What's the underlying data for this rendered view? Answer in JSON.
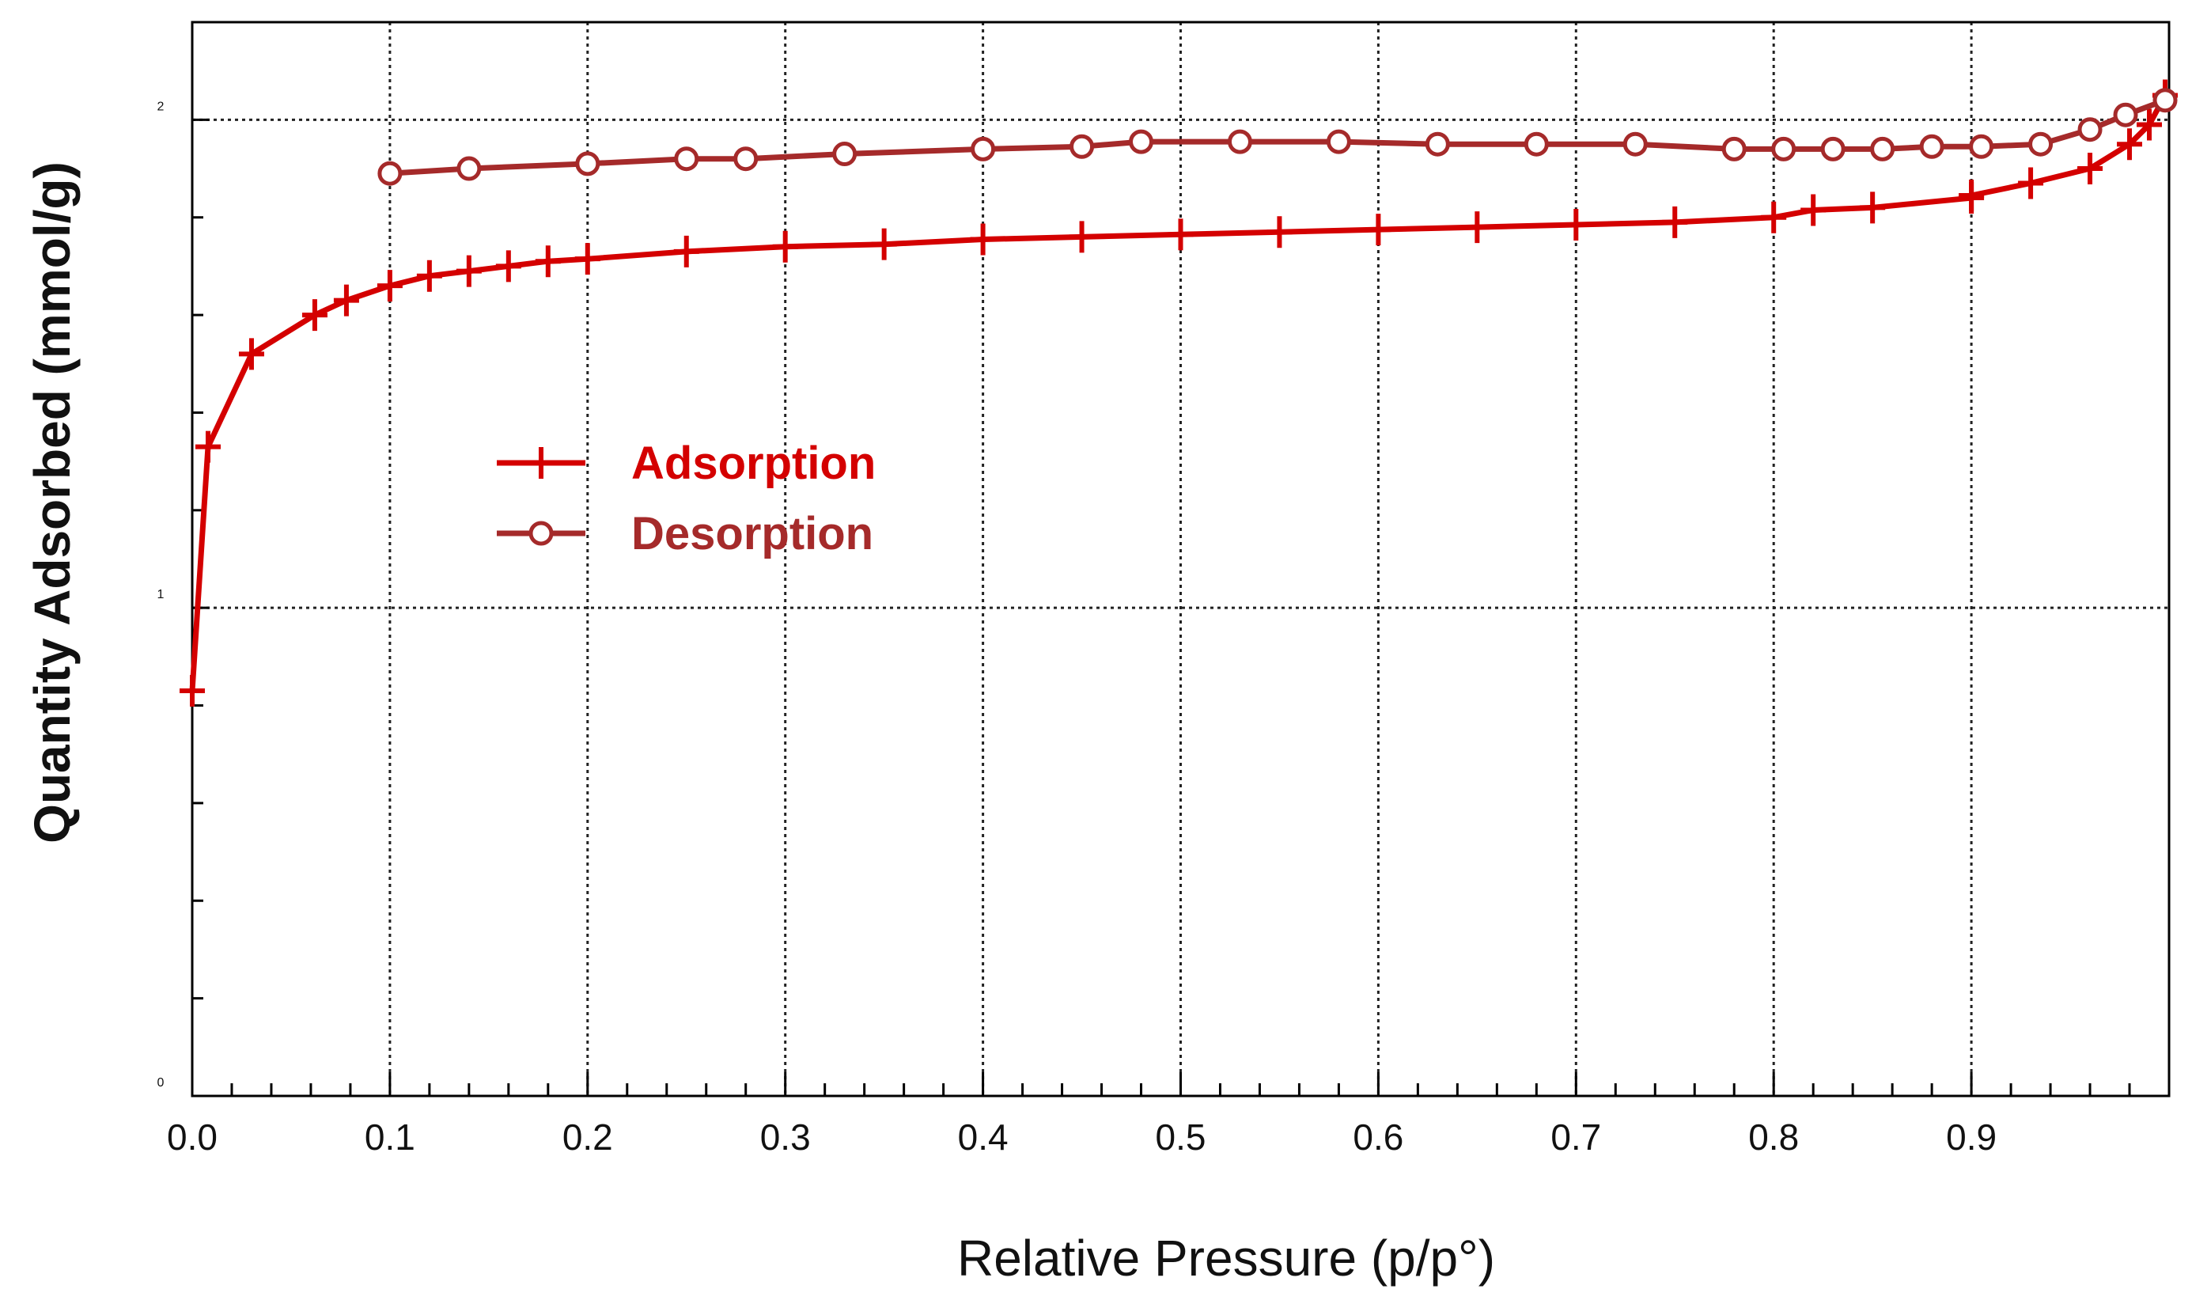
{
  "chart_data": {
    "type": "line",
    "title": "",
    "xlabel": "Relative Pressure (p/p°)",
    "ylabel": "Quantity Adsorbed (mmol/g)",
    "xlim": [
      0,
      1.0
    ],
    "ylim": [
      0,
      2.2
    ],
    "x_ticks": [
      0.0,
      0.1,
      0.2,
      0.3,
      0.4,
      0.5,
      0.6,
      0.7,
      0.8,
      0.9
    ],
    "x_tick_labels": [
      "0.0",
      "0.1",
      "0.2",
      "0.3",
      "0.4",
      "0.5",
      "0.6",
      "0.7",
      "0.8",
      "0.9"
    ],
    "y_ticks": [
      0,
      1,
      2
    ],
    "y_tick_labels": [
      "0",
      "1",
      "2"
    ],
    "grid": true,
    "legend_position": "center-left",
    "series": [
      {
        "name": "Adsorption",
        "marker": "plus",
        "color": "#d40000",
        "x": [
          0.0,
          0.008,
          0.03,
          0.062,
          0.078,
          0.1,
          0.12,
          0.14,
          0.16,
          0.18,
          0.2,
          0.25,
          0.3,
          0.35,
          0.4,
          0.45,
          0.5,
          0.55,
          0.6,
          0.65,
          0.7,
          0.75,
          0.8,
          0.82,
          0.85,
          0.9,
          0.9,
          0.93,
          0.96,
          0.98,
          0.99,
          0.998
        ],
        "y": [
          0.83,
          1.33,
          1.52,
          1.6,
          1.63,
          1.66,
          1.68,
          1.69,
          1.7,
          1.71,
          1.715,
          1.73,
          1.74,
          1.745,
          1.755,
          1.76,
          1.765,
          1.77,
          1.775,
          1.78,
          1.785,
          1.79,
          1.8,
          1.815,
          1.82,
          1.84,
          1.845,
          1.87,
          1.9,
          1.95,
          1.99,
          2.05
        ]
      },
      {
        "name": "Desorption",
        "marker": "circle",
        "color": "#a52a2a",
        "x": [
          0.998,
          0.978,
          0.96,
          0.935,
          0.905,
          0.88,
          0.855,
          0.83,
          0.805,
          0.78,
          0.73,
          0.68,
          0.63,
          0.58,
          0.53,
          0.48,
          0.45,
          0.4,
          0.33,
          0.28,
          0.25,
          0.2,
          0.14,
          0.1
        ],
        "y": [
          2.04,
          2.01,
          1.98,
          1.95,
          1.945,
          1.945,
          1.94,
          1.94,
          1.94,
          1.94,
          1.95,
          1.95,
          1.95,
          1.955,
          1.955,
          1.955,
          1.945,
          1.94,
          1.93,
          1.92,
          1.92,
          1.91,
          1.9,
          1.89
        ]
      }
    ]
  }
}
